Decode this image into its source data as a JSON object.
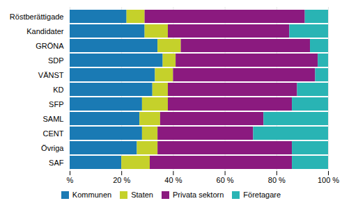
{
  "chart_data": {
    "type": "bar",
    "orientation": "horizontal",
    "stacked": true,
    "categories": [
      "Röstberättigade",
      "Kandidater",
      "GRÖNA",
      "SDP",
      "VÄNST",
      "KD",
      "SFP",
      "SAML",
      "CENT",
      "Övriga",
      "SAF"
    ],
    "series": [
      {
        "name": "Kommunen",
        "color": "#1a7ab4",
        "values": [
          22,
          29,
          34,
          36,
          33,
          32,
          28,
          27,
          28,
          26,
          20
        ]
      },
      {
        "name": "Staten",
        "color": "#c5d12b",
        "values": [
          7,
          9,
          9,
          5,
          7,
          6,
          10,
          8,
          6,
          8,
          11
        ]
      },
      {
        "name": "Privata sektorn",
        "color": "#8b1a7f",
        "values": [
          62,
          47,
          50,
          55,
          55,
          50,
          48,
          40,
          37,
          52,
          55
        ]
      },
      {
        "name": "Företagare",
        "color": "#29b4b4",
        "values": [
          9,
          15,
          7,
          4,
          5,
          12,
          14,
          25,
          29,
          14,
          14
        ]
      }
    ],
    "xlim": [
      0,
      100
    ],
    "xticks": [
      {
        "value": 0,
        "label": "%"
      },
      {
        "value": 20,
        "label": "20 %"
      },
      {
        "value": 40,
        "label": "40 %"
      },
      {
        "value": 60,
        "label": "60 %"
      },
      {
        "value": 80,
        "label": "80 %"
      },
      {
        "value": 100,
        "label": "100 %"
      }
    ],
    "grid": true,
    "legend": "bottom"
  }
}
